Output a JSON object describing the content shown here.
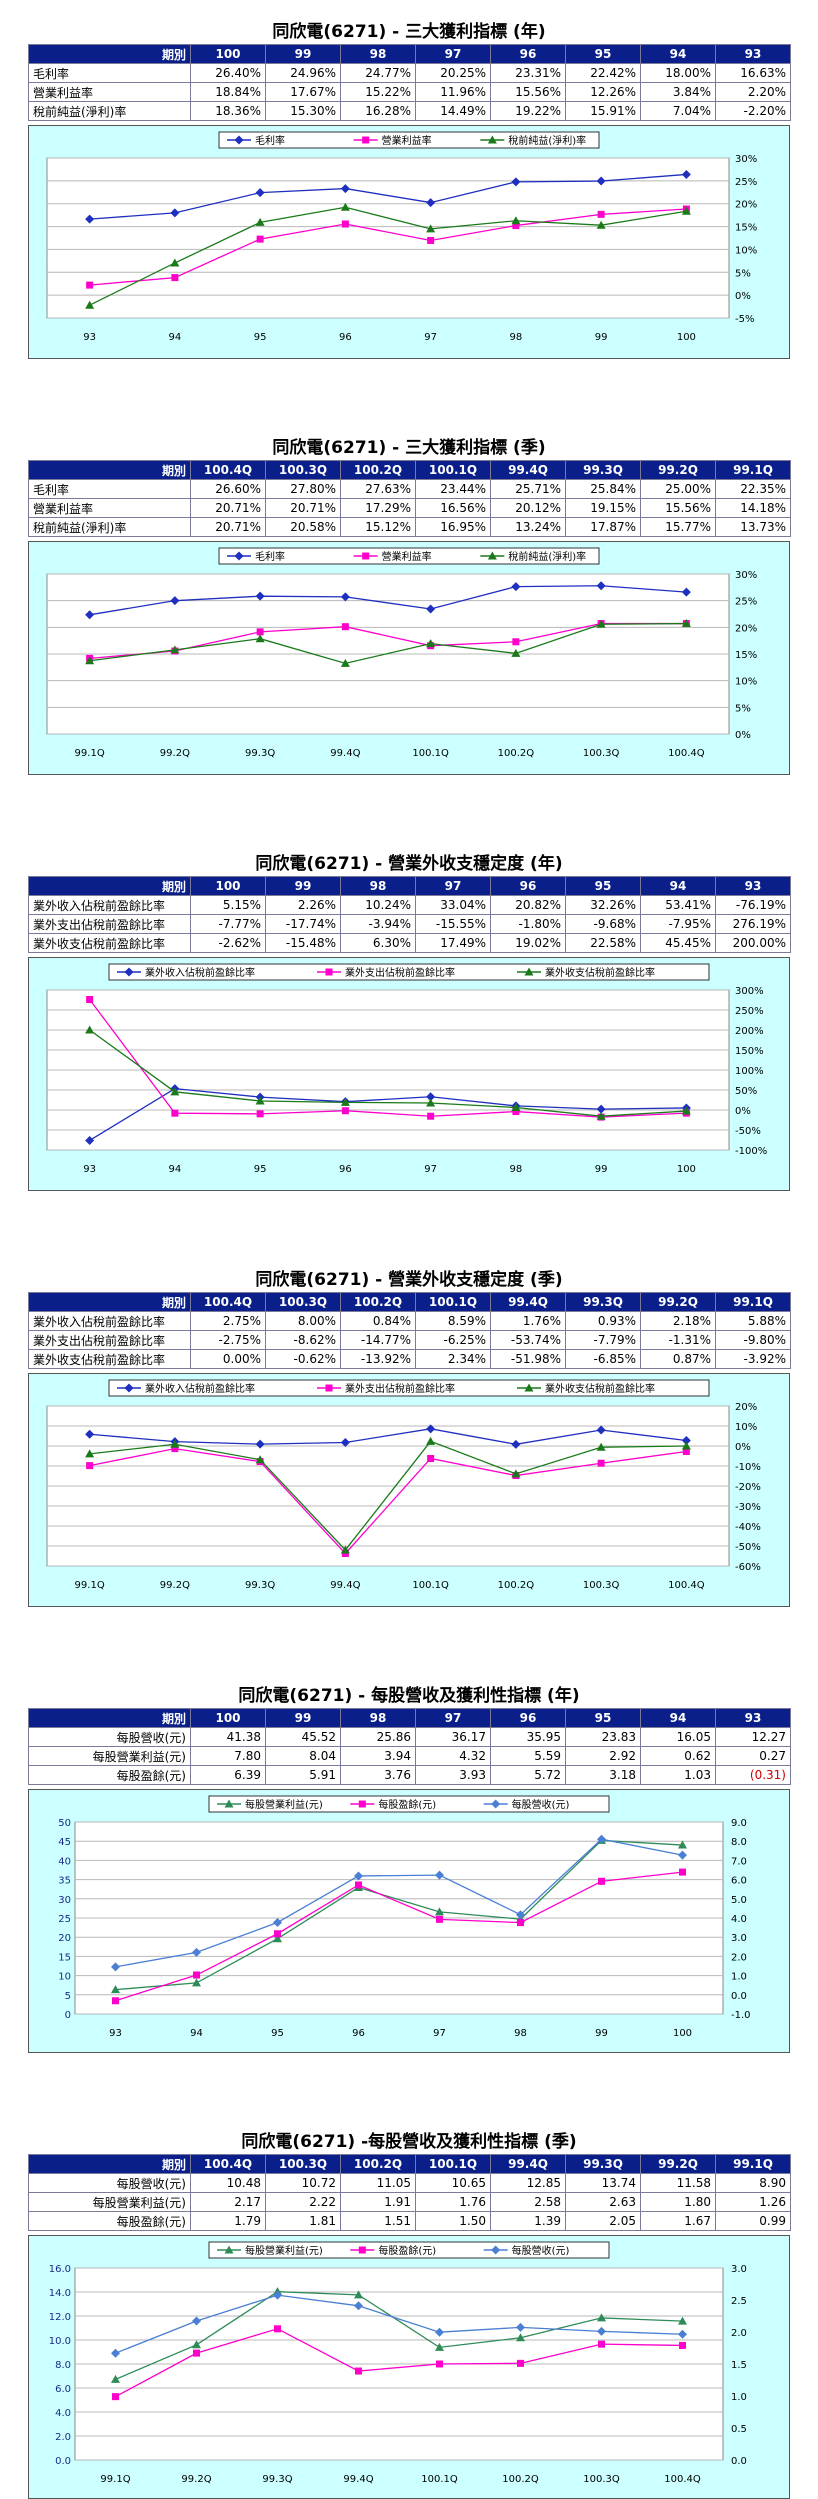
{
  "sections": [
    {
      "title": "同欣電(6271) - 三大獲利指標 (年)",
      "header_label": "期別",
      "columns": [
        "100",
        "99",
        "98",
        "97",
        "96",
        "95",
        "94",
        "93"
      ],
      "rows": [
        {
          "label": "毛利率",
          "values": [
            "26.40%",
            "24.96%",
            "24.77%",
            "20.25%",
            "23.31%",
            "22.42%",
            "18.00%",
            "16.63%"
          ]
        },
        {
          "label": "營業利益率",
          "values": [
            "18.84%",
            "17.67%",
            "15.22%",
            "11.96%",
            "15.56%",
            "12.26%",
            "3.84%",
            "2.20%"
          ]
        },
        {
          "label": "稅前純益(淨利)率",
          "values": [
            "18.36%",
            "15.30%",
            "16.28%",
            "14.49%",
            "19.22%",
            "15.91%",
            "7.04%",
            "-2.20%"
          ]
        }
      ]
    },
    {
      "title": "同欣電(6271) - 三大獲利指標 (季)",
      "header_label": "期別",
      "columns": [
        "100.4Q",
        "100.3Q",
        "100.2Q",
        "100.1Q",
        "99.4Q",
        "99.3Q",
        "99.2Q",
        "99.1Q"
      ],
      "rows": [
        {
          "label": "毛利率",
          "values": [
            "26.60%",
            "27.80%",
            "27.63%",
            "23.44%",
            "25.71%",
            "25.84%",
            "25.00%",
            "22.35%"
          ]
        },
        {
          "label": "營業利益率",
          "values": [
            "20.71%",
            "20.71%",
            "17.29%",
            "16.56%",
            "20.12%",
            "19.15%",
            "15.56%",
            "14.18%"
          ]
        },
        {
          "label": "稅前純益(淨利)率",
          "values": [
            "20.71%",
            "20.58%",
            "15.12%",
            "16.95%",
            "13.24%",
            "17.87%",
            "15.77%",
            "13.73%"
          ]
        }
      ]
    },
    {
      "title": "同欣電(6271) - 營業外收支穩定度 (年)",
      "header_label": "期別",
      "columns": [
        "100",
        "99",
        "98",
        "97",
        "96",
        "95",
        "94",
        "93"
      ],
      "rows": [
        {
          "label": "業外收入佔稅前盈餘比率",
          "values": [
            "5.15%",
            "2.26%",
            "10.24%",
            "33.04%",
            "20.82%",
            "32.26%",
            "53.41%",
            "-76.19%"
          ]
        },
        {
          "label": "業外支出佔稅前盈餘比率",
          "values": [
            "-7.77%",
            "-17.74%",
            "-3.94%",
            "-15.55%",
            "-1.80%",
            "-9.68%",
            "-7.95%",
            "276.19%"
          ]
        },
        {
          "label": "業外收支佔稅前盈餘比率",
          "values": [
            "-2.62%",
            "-15.48%",
            "6.30%",
            "17.49%",
            "19.02%",
            "22.58%",
            "45.45%",
            "200.00%"
          ]
        }
      ]
    },
    {
      "title": "同欣電(6271) - 營業外收支穩定度 (季)",
      "header_label": "期別",
      "columns": [
        "100.4Q",
        "100.3Q",
        "100.2Q",
        "100.1Q",
        "99.4Q",
        "99.3Q",
        "99.2Q",
        "99.1Q"
      ],
      "rows": [
        {
          "label": "業外收入佔稅前盈餘比率",
          "values": [
            "2.75%",
            "8.00%",
            "0.84%",
            "8.59%",
            "1.76%",
            "0.93%",
            "2.18%",
            "5.88%"
          ]
        },
        {
          "label": "業外支出佔稅前盈餘比率",
          "values": [
            "-2.75%",
            "-8.62%",
            "-14.77%",
            "-6.25%",
            "-53.74%",
            "-7.79%",
            "-1.31%",
            "-9.80%"
          ]
        },
        {
          "label": "業外收支佔稅前盈餘比率",
          "values": [
            "0.00%",
            "-0.62%",
            "-13.92%",
            "2.34%",
            "-51.98%",
            "-6.85%",
            "0.87%",
            "-3.92%"
          ]
        }
      ]
    },
    {
      "title": "同欣電(6271) - 每股營收及獲利性指標 (年)",
      "header_label": "期別",
      "columns": [
        "100",
        "99",
        "98",
        "97",
        "96",
        "95",
        "94",
        "93"
      ],
      "rows": [
        {
          "label": "每股營收(元)",
          "values": [
            "41.38",
            "45.52",
            "25.86",
            "36.17",
            "35.95",
            "23.83",
            "16.05",
            "12.27"
          ]
        },
        {
          "label": "每股營業利益(元)",
          "values": [
            "7.80",
            "8.04",
            "3.94",
            "4.32",
            "5.59",
            "2.92",
            "0.62",
            "0.27"
          ]
        },
        {
          "label": "每股盈餘(元)",
          "values": [
            "6.39",
            "5.91",
            "3.76",
            "3.93",
            "5.72",
            "3.18",
            "1.03",
            "(0.31)"
          ]
        }
      ]
    },
    {
      "title": "同欣電(6271) -每股營收及獲利性指標 (季)",
      "header_label": "期別",
      "columns": [
        "100.4Q",
        "100.3Q",
        "100.2Q",
        "100.1Q",
        "99.4Q",
        "99.3Q",
        "99.2Q",
        "99.1Q"
      ],
      "rows": [
        {
          "label": "每股營收(元)",
          "values": [
            "10.48",
            "10.72",
            "11.05",
            "10.65",
            "12.85",
            "13.74",
            "11.58",
            "8.90"
          ]
        },
        {
          "label": "每股營業利益(元)",
          "values": [
            "2.17",
            "2.22",
            "1.91",
            "1.76",
            "2.58",
            "2.63",
            "1.80",
            "1.26"
          ]
        },
        {
          "label": "每股盈餘(元)",
          "values": [
            "1.79",
            "1.81",
            "1.51",
            "1.50",
            "1.39",
            "2.05",
            "1.67",
            "0.99"
          ]
        }
      ]
    }
  ],
  "chart_data": [
    {
      "type": "line",
      "categories": [
        "93",
        "94",
        "95",
        "96",
        "97",
        "98",
        "99",
        "100"
      ],
      "y_ticks": [
        "30%",
        "25%",
        "20%",
        "15%",
        "10%",
        "5%",
        "0%",
        "-5%"
      ],
      "ylim": [
        -5,
        30
      ],
      "grid": true,
      "legend_position": "top",
      "series": [
        {
          "name": "毛利率",
          "color": "#1f2fbf",
          "marker": "diamond",
          "values": [
            16.63,
            18.0,
            22.42,
            23.31,
            20.25,
            24.77,
            24.96,
            26.4
          ]
        },
        {
          "name": "營業利益率",
          "color": "#ff00cc",
          "marker": "square",
          "values": [
            2.2,
            3.84,
            12.26,
            15.56,
            11.96,
            15.22,
            17.67,
            18.84
          ]
        },
        {
          "name": "稅前純益(淨利)率",
          "color": "#1a7a1a",
          "marker": "triangle",
          "values": [
            -2.2,
            7.04,
            15.91,
            19.22,
            14.49,
            16.28,
            15.3,
            18.36
          ]
        }
      ]
    },
    {
      "type": "line",
      "categories": [
        "99.1Q",
        "99.2Q",
        "99.3Q",
        "99.4Q",
        "100.1Q",
        "100.2Q",
        "100.3Q",
        "100.4Q"
      ],
      "y_ticks": [
        "30%",
        "25%",
        "20%",
        "15%",
        "10%",
        "5%",
        "0%"
      ],
      "ylim": [
        0,
        30
      ],
      "grid": true,
      "legend_position": "top",
      "series": [
        {
          "name": "毛利率",
          "color": "#1f2fbf",
          "marker": "diamond",
          "values": [
            22.35,
            25.0,
            25.84,
            25.71,
            23.44,
            27.63,
            27.8,
            26.6
          ]
        },
        {
          "name": "營業利益率",
          "color": "#ff00cc",
          "marker": "square",
          "values": [
            14.18,
            15.56,
            19.15,
            20.12,
            16.56,
            17.29,
            20.71,
            20.71
          ]
        },
        {
          "name": "稅前純益(淨利)率",
          "color": "#1a7a1a",
          "marker": "triangle",
          "values": [
            13.73,
            15.77,
            17.87,
            13.24,
            16.95,
            15.12,
            20.58,
            20.71
          ]
        }
      ]
    },
    {
      "type": "line",
      "categories": [
        "93",
        "94",
        "95",
        "96",
        "97",
        "98",
        "99",
        "100"
      ],
      "y_ticks": [
        "300%",
        "250%",
        "200%",
        "150%",
        "100%",
        "50%",
        "0%",
        "-50%",
        "-100%"
      ],
      "ylim": [
        -100,
        300
      ],
      "grid": true,
      "legend_position": "top",
      "series": [
        {
          "name": "業外收入佔稅前盈餘比率",
          "color": "#1f2fbf",
          "marker": "diamond",
          "values": [
            -76.19,
            53.41,
            32.26,
            20.82,
            33.04,
            10.24,
            2.26,
            5.15
          ]
        },
        {
          "name": "業外支出佔稅前盈餘比率",
          "color": "#ff00cc",
          "marker": "square",
          "values": [
            276.19,
            -7.95,
            -9.68,
            -1.8,
            -15.55,
            -3.94,
            -17.74,
            -7.77
          ]
        },
        {
          "name": "業外收支佔稅前盈餘比率",
          "color": "#1a7a1a",
          "marker": "triangle",
          "values": [
            200.0,
            45.45,
            22.58,
            19.02,
            17.49,
            6.3,
            -15.48,
            -2.62
          ]
        }
      ]
    },
    {
      "type": "line",
      "categories": [
        "99.1Q",
        "99.2Q",
        "99.3Q",
        "99.4Q",
        "100.1Q",
        "100.2Q",
        "100.3Q",
        "100.4Q"
      ],
      "y_ticks": [
        "20%",
        "10%",
        "0%",
        "-10%",
        "-20%",
        "-30%",
        "-40%",
        "-50%",
        "-60%"
      ],
      "ylim": [
        -60,
        20
      ],
      "grid": true,
      "legend_position": "top",
      "series": [
        {
          "name": "業外收入佔稅前盈餘比率",
          "color": "#1f2fbf",
          "marker": "diamond",
          "values": [
            5.88,
            2.18,
            0.93,
            1.76,
            8.59,
            0.84,
            8.0,
            2.75
          ]
        },
        {
          "name": "業外支出佔稅前盈餘比率",
          "color": "#ff00cc",
          "marker": "square",
          "values": [
            -9.8,
            -1.31,
            -7.79,
            -53.74,
            -6.25,
            -14.77,
            -8.62,
            -2.75
          ]
        },
        {
          "name": "業外收支佔稅前盈餘比率",
          "color": "#1a7a1a",
          "marker": "triangle",
          "values": [
            -3.92,
            0.87,
            -6.85,
            -51.98,
            2.34,
            -13.92,
            -0.62,
            0.0
          ]
        }
      ]
    },
    {
      "type": "line",
      "categories": [
        "93",
        "94",
        "95",
        "96",
        "97",
        "98",
        "99",
        "100"
      ],
      "y_ticks": [
        "50",
        "45",
        "40",
        "35",
        "30",
        "25",
        "20",
        "15",
        "10",
        "5",
        "0"
      ],
      "ylim": [
        0,
        50
      ],
      "y2_ticks": [
        "9.0",
        "8.0",
        "7.0",
        "6.0",
        "5.0",
        "4.0",
        "3.0",
        "2.0",
        "1.0",
        "0.0",
        "-1.0"
      ],
      "y2lim": [
        -1,
        9
      ],
      "grid": true,
      "legend_position": "top",
      "series": [
        {
          "name": "每股營業利益(元)",
          "color": "#2e8b57",
          "marker": "triangle",
          "axis": "y2",
          "values": [
            0.27,
            0.62,
            2.92,
            5.59,
            4.32,
            3.94,
            8.04,
            7.8
          ]
        },
        {
          "name": "每股盈餘(元)",
          "color": "#ff00cc",
          "marker": "square",
          "axis": "y2",
          "values": [
            -0.31,
            1.03,
            3.18,
            5.72,
            3.93,
            3.76,
            5.91,
            6.39
          ]
        },
        {
          "name": "每股營收(元)",
          "color": "#4a7fd4",
          "marker": "diamond",
          "axis": "y",
          "values": [
            12.27,
            16.05,
            23.83,
            35.95,
            36.17,
            25.86,
            45.52,
            41.38
          ]
        }
      ]
    },
    {
      "type": "line",
      "categories": [
        "99.1Q",
        "99.2Q",
        "99.3Q",
        "99.4Q",
        "100.1Q",
        "100.2Q",
        "100.3Q",
        "100.4Q"
      ],
      "y_ticks": [
        "16.0",
        "14.0",
        "12.0",
        "10.0",
        "8.0",
        "6.0",
        "4.0",
        "2.0",
        "0.0"
      ],
      "ylim": [
        0,
        16
      ],
      "y2_ticks": [
        "3.0",
        "2.5",
        "2.0",
        "1.5",
        "1.0",
        "0.5",
        "0.0"
      ],
      "y2lim": [
        0,
        3
      ],
      "grid": true,
      "legend_position": "top",
      "series": [
        {
          "name": "每股營業利益(元)",
          "color": "#2e8b57",
          "marker": "triangle",
          "axis": "y2",
          "values": [
            1.26,
            1.8,
            2.63,
            2.58,
            1.76,
            1.91,
            2.22,
            2.17
          ]
        },
        {
          "name": "每股盈餘(元)",
          "color": "#ff00cc",
          "marker": "square",
          "axis": "y2",
          "values": [
            0.99,
            1.67,
            2.05,
            1.39,
            1.5,
            1.51,
            1.81,
            1.79
          ]
        },
        {
          "name": "每股營收(元)",
          "color": "#4a7fd4",
          "marker": "diamond",
          "axis": "y",
          "values": [
            8.9,
            11.58,
            13.74,
            12.85,
            10.65,
            11.05,
            10.72,
            10.48
          ]
        }
      ]
    }
  ]
}
